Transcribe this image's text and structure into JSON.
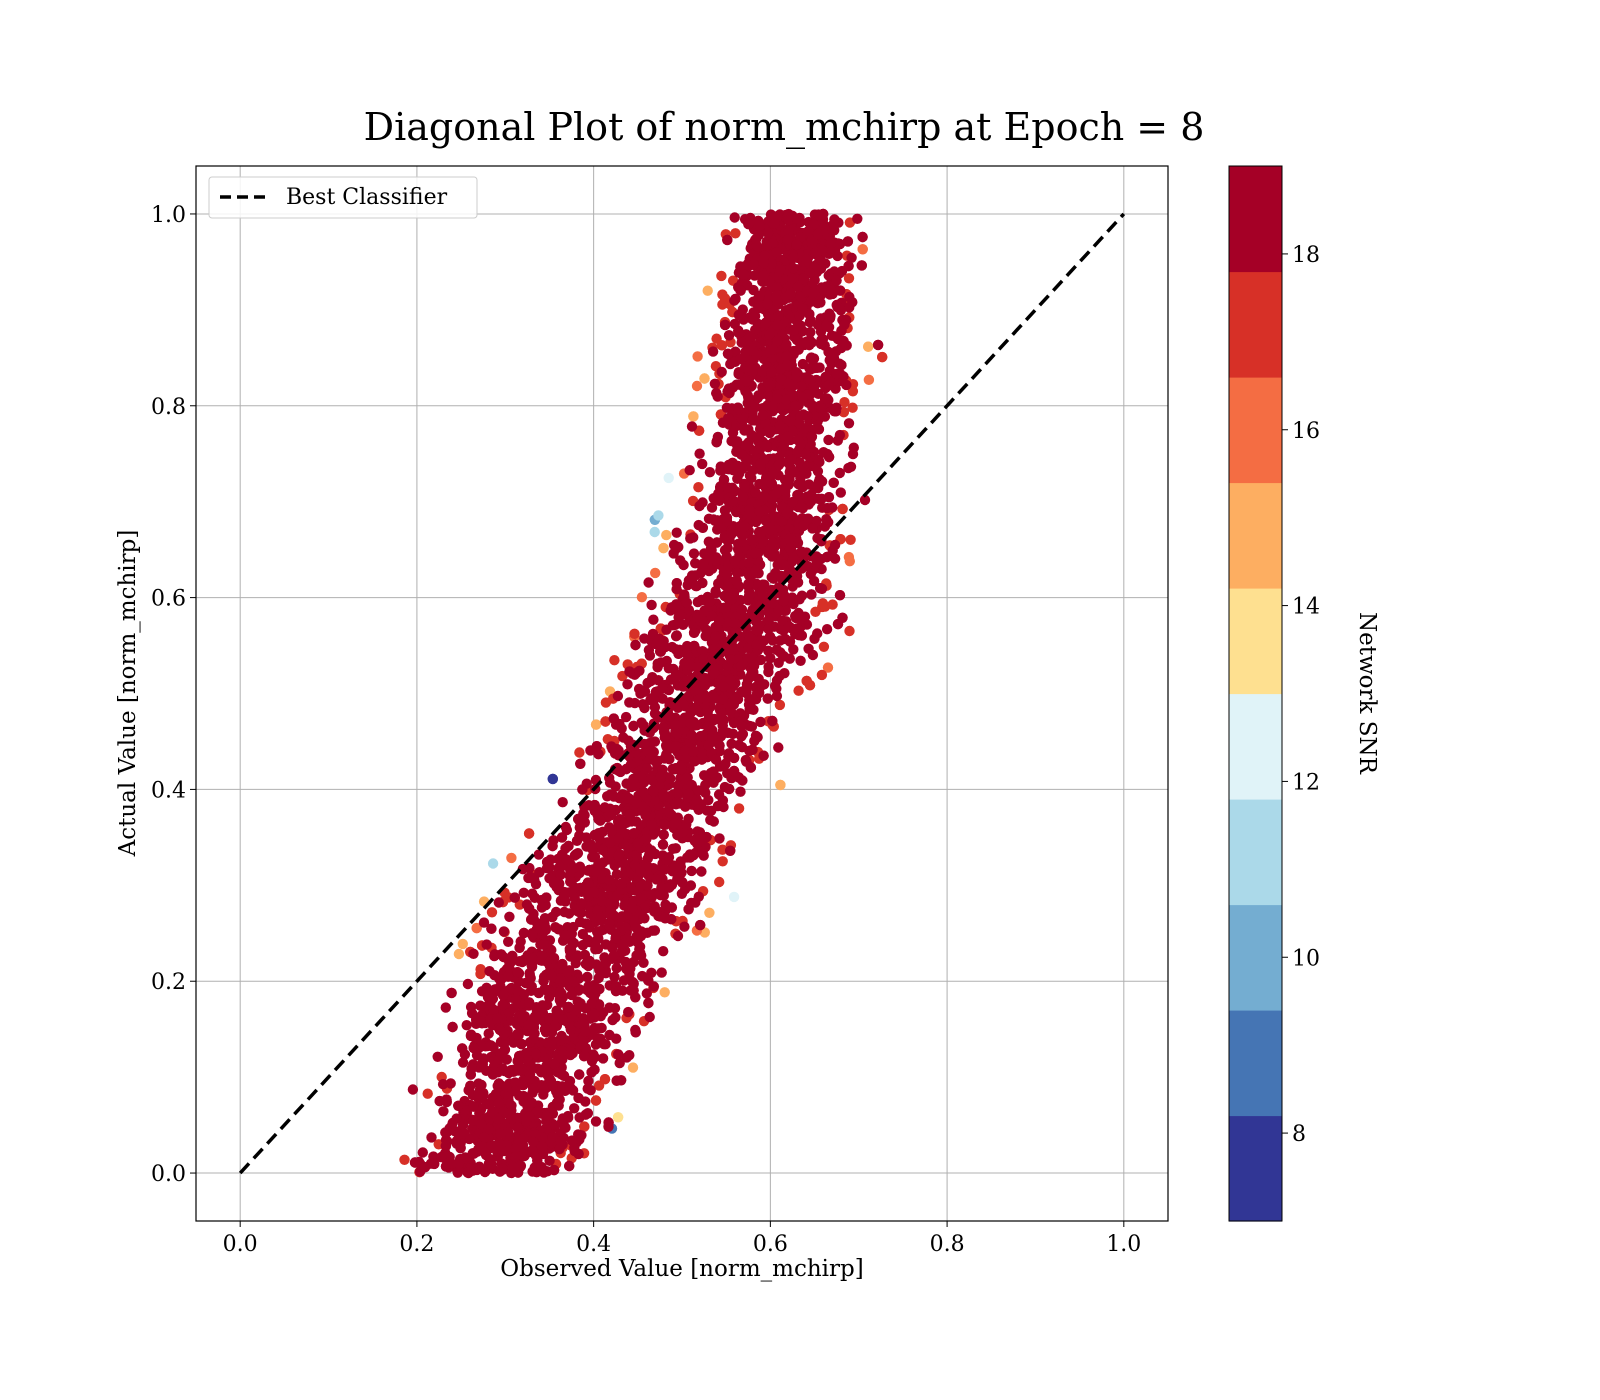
{
  "chart_data": {
    "type": "scatter",
    "title": "Diagonal Plot of norm_mchirp at Epoch = 8",
    "xlabel": "Observed Value [norm_mchirp]",
    "ylabel": "Actual Value [norm_mchirp]",
    "xlim": [
      -0.05,
      1.05
    ],
    "ylim": [
      -0.05,
      1.05
    ],
    "xticks": [
      "0.0",
      "0.2",
      "0.4",
      "0.6",
      "0.8",
      "1.0"
    ],
    "yticks": [
      "0.0",
      "0.2",
      "0.4",
      "0.6",
      "0.8",
      "1.0"
    ],
    "grid": true,
    "legend": {
      "position": "top-left",
      "entries": [
        "Best Classifier"
      ]
    },
    "reference_line": {
      "name": "Best Classifier",
      "style": "dashed",
      "color": "#000000",
      "x": [
        0.0,
        1.0
      ],
      "y": [
        0.0,
        1.0
      ]
    },
    "colorbar": {
      "label": "Network SNR",
      "range": [
        7,
        19
      ],
      "ticks": [
        "8",
        "10",
        "12",
        "14",
        "16",
        "18"
      ],
      "colors": [
        "#313695",
        "#4575b4",
        "#74add1",
        "#abd9e9",
        "#e0f3f8",
        "#fee090",
        "#fdae61",
        "#f46d43",
        "#d73027",
        "#a50026"
      ]
    },
    "series": [
      {
        "color_by": "Network SNR",
        "points_summary": "dense band of points following y ≈ x trend",
        "band_x_at_y": [
          [
            0.0,
            0.17,
            0.4
          ],
          [
            0.2,
            0.2,
            0.52
          ],
          [
            0.4,
            0.34,
            0.62
          ],
          [
            0.6,
            0.44,
            0.71
          ],
          [
            0.8,
            0.5,
            0.73
          ],
          [
            1.0,
            0.53,
            0.72
          ]
        ]
      }
    ]
  }
}
